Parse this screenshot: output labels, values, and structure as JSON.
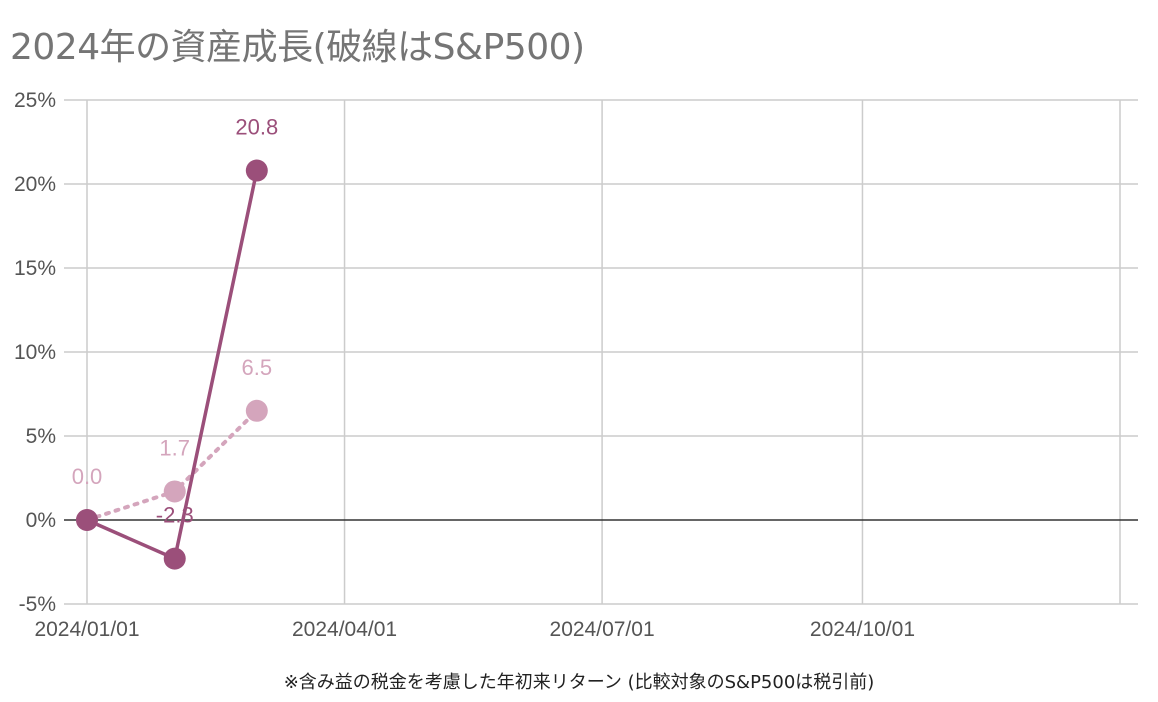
{
  "chart_data": {
    "type": "line",
    "title": "2024年の資産成長(破線はS&P500)",
    "footnote": "※含み益の税金を考慮した年初来リターン (比較対象のS&P500は税引前)",
    "y_ticks": [
      "25%",
      "20%",
      "15%",
      "10%",
      "5%",
      "0%",
      "-5%"
    ],
    "y_tick_values": [
      25,
      20,
      15,
      10,
      5,
      0,
      -5
    ],
    "x_ticks": [
      "2024/01/01",
      "2024/04/01",
      "2024/07/01",
      "2024/10/01"
    ],
    "x_tick_dates": [
      "2024-01-01",
      "2024-04-01",
      "2024-07-01",
      "2024-10-01"
    ],
    "xlim": [
      "2024-01-01",
      "2024-12-31"
    ],
    "ylim": [
      -5,
      25
    ],
    "grid": true,
    "series": [
      {
        "style": "solid",
        "color": "#9b4f7a",
        "points": [
          {
            "x": "2024-01-01",
            "y": 0.0
          },
          {
            "x": "2024-02-01",
            "y": -2.3,
            "label": "-2.3"
          },
          {
            "x": "2024-03-01",
            "y": 20.8,
            "label": "20.8"
          }
        ]
      },
      {
        "style": "dotted",
        "color": "#d4a5bc",
        "points": [
          {
            "x": "2024-01-01",
            "y": 0.0,
            "label": "0.0"
          },
          {
            "x": "2024-02-01",
            "y": 1.7,
            "label": "1.7"
          },
          {
            "x": "2024-03-01",
            "y": 6.5,
            "label": "6.5"
          }
        ]
      }
    ]
  }
}
